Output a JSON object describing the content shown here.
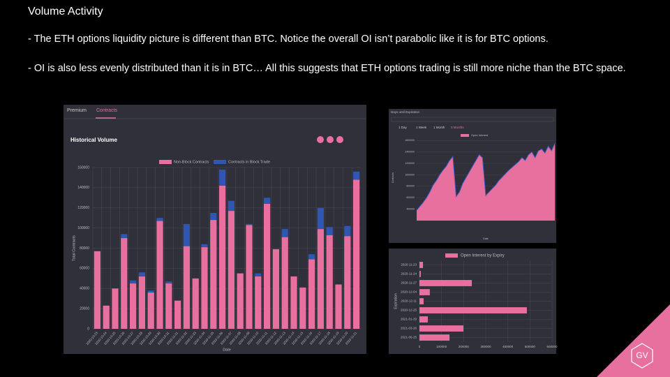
{
  "slide": {
    "title": "Volume Activity",
    "bullets": [
      "- The ETH options liquidity  picture is different than BTC. Notice the overall OI isn’t parabolic like it is for BTC options.",
      "- OI is also less evenly distributed than it is in BTC… All this suggests that ETH options trading is still more niche than the BTC space."
    ],
    "logo": "GV"
  },
  "chart_data": [
    {
      "type": "bar",
      "stacked": true,
      "tabs": [
        "Premium",
        "Contracts"
      ],
      "title": "Historical Volume",
      "x_label": "Date",
      "y_label": "Total Contracts",
      "categories": [
        "2020-10-23",
        "2020-10-24",
        "2020-10-25",
        "2020-10-26",
        "2020-10-27",
        "2020-10-28",
        "2020-10-29",
        "2020-10-30",
        "2020-10-31",
        "2020-11-01",
        "2020-11-02",
        "2020-11-03",
        "2020-11-04",
        "2020-11-05",
        "2020-11-06",
        "2020-11-07",
        "2020-11-08",
        "2020-11-09",
        "2020-11-10",
        "2020-11-11",
        "2020-11-12",
        "2020-11-13",
        "2020-11-14",
        "2020-11-15",
        "2020-11-16",
        "2020-11-17",
        "2020-11-18",
        "2020-11-19",
        "2020-11-20",
        "2020-11-21"
      ],
      "series": [
        {
          "name": "Non-Block Contracts",
          "color": "#e8709f",
          "values": [
            77000,
            23000,
            40000,
            90000,
            45000,
            52000,
            36000,
            107000,
            45000,
            28000,
            82000,
            50000,
            81000,
            108000,
            142000,
            117000,
            55000,
            103000,
            52000,
            124000,
            79000,
            91000,
            52000,
            41000,
            69000,
            99000,
            93000,
            44000,
            92000,
            148000
          ]
        },
        {
          "name": "Contracts in Block Trade",
          "color": "#2f56b0",
          "values": [
            0,
            0,
            0,
            4000,
            3000,
            4000,
            2000,
            3000,
            2000,
            0,
            22000,
            0,
            3000,
            7000,
            16000,
            10000,
            0,
            1000,
            3000,
            6000,
            0,
            8000,
            0,
            0,
            5000,
            21000,
            8000,
            0,
            10000,
            8000
          ]
        }
      ],
      "ylim": [
        0,
        160000
      ],
      "yticks": [
        0,
        20000,
        40000,
        60000,
        80000,
        100000,
        120000,
        140000,
        160000
      ],
      "grid": true
    },
    {
      "type": "area",
      "title": "Days until Expiration",
      "tabs": [
        "1 Day",
        "1 Week",
        "1 Month",
        "3 Months"
      ],
      "x_label": "Date",
      "y_label": "Contracts",
      "series": [
        {
          "name": "Open Interest",
          "color": "#e8709f",
          "edge_color": "#3a5cc8",
          "values": [
            380000,
            450000,
            520000,
            600000,
            700000,
            820000,
            900000,
            1000000,
            1080000,
            1150000,
            1250000,
            1320000,
            620000,
            700000,
            850000,
            950000,
            1050000,
            1150000,
            1250000,
            1350000,
            1300000,
            640000,
            700000,
            760000,
            820000,
            900000,
            960000,
            1020000,
            1080000,
            1130000,
            1180000,
            1230000,
            1300000,
            1250000,
            1350000,
            1400000,
            1300000,
            1420000,
            1450000,
            1380000,
            1500000,
            1420000,
            1550000
          ]
        }
      ],
      "ylim": [
        200000,
        1700000
      ],
      "yticks": [
        400000,
        600000,
        800000,
        1000000,
        1200000,
        1400000,
        1600000
      ],
      "grid": true
    },
    {
      "type": "bar",
      "orientation": "horizontal",
      "x_label": "Expiration",
      "categories": [
        "2020-11-23",
        "2020-11-24",
        "2020-11-27",
        "2020-12-04",
        "2020-12-11",
        "2020-12-25",
        "2021-01-29",
        "2021-03-26",
        "2021-06-25"
      ],
      "series": [
        {
          "name": "Open Interest by Expiry",
          "color": "#e8709f",
          "values": [
            16000,
            6000,
            237000,
            47000,
            19000,
            486000,
            38000,
            199000,
            136000
          ]
        }
      ],
      "xlim": [
        0,
        600000
      ],
      "xticks": [
        0,
        100000,
        200000,
        300000,
        400000,
        500000,
        600000
      ],
      "grid": true
    }
  ]
}
